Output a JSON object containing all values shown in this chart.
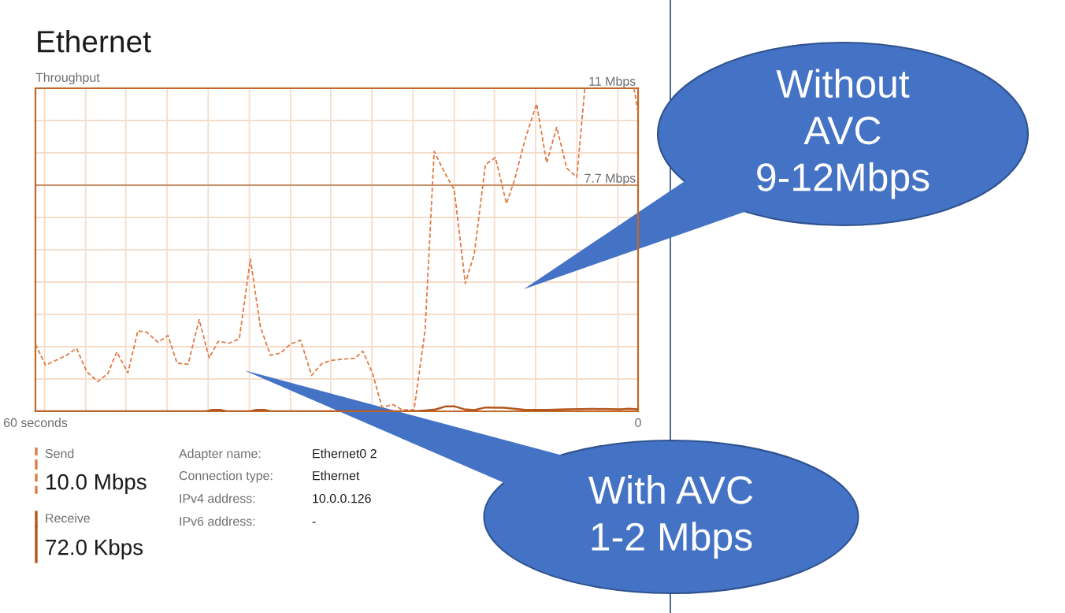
{
  "chart_data": {
    "type": "line",
    "title": "Ethernet",
    "ylabel": "Throughput",
    "xlim": [
      60,
      0
    ],
    "xticks": [
      {
        "value": 60,
        "label": "60 seconds"
      },
      {
        "value": 59.1,
        "label": null
      },
      {
        "value": 55.0,
        "label": null
      },
      {
        "value": 51.0,
        "label": null
      },
      {
        "value": 46.9,
        "label": null
      },
      {
        "value": 42.8,
        "label": null
      },
      {
        "value": 38.7,
        "label": null
      },
      {
        "value": 34.6,
        "label": null
      },
      {
        "value": 30.6,
        "label": null
      },
      {
        "value": 26.5,
        "label": null
      },
      {
        "value": 22.4,
        "label": null
      },
      {
        "value": 18.3,
        "label": null
      },
      {
        "value": 14.3,
        "label": null
      },
      {
        "value": 10.2,
        "label": null
      },
      {
        "value": 6.1,
        "label": null
      },
      {
        "value": 2.0,
        "label": null
      },
      {
        "value": 0,
        "label": "0"
      }
    ],
    "ylim": [
      0,
      11
    ],
    "yticks": [
      {
        "value": 1.1,
        "label": null
      },
      {
        "value": 2.2,
        "label": null
      },
      {
        "value": 3.3,
        "label": null
      },
      {
        "value": 4.4,
        "label": null
      },
      {
        "value": 5.5,
        "label": null
      },
      {
        "value": 6.6,
        "label": null
      },
      {
        "value": 7.7,
        "label": "7.7 Mbps"
      },
      {
        "value": 8.8,
        "label": null
      },
      {
        "value": 9.9,
        "label": null
      },
      {
        "value": 11,
        "label": "11 Mbps"
      }
    ],
    "grid": true,
    "legend": "bottom left",
    "ref_lines": [
      {
        "axis": "y",
        "value": 7.7,
        "color": "#c8926a"
      }
    ],
    "series": [
      {
        "name": "Send",
        "color": "#e07b45",
        "line_style": "dashed",
        "x": [
          60,
          59,
          57,
          55.9,
          54.9,
          53.8,
          52.8,
          51.9,
          50.8,
          49.8,
          48.9,
          47.8,
          46.8,
          45.9,
          44.8,
          43.7,
          42.7,
          41.8,
          40.7,
          39.7,
          38.6,
          37.6,
          36.6,
          35.6,
          34.6,
          33.6,
          32.5,
          31.5,
          30.6,
          29.3,
          28.2,
          27.4,
          26.4,
          25.5,
          24.4,
          23.5,
          22.3,
          21.2,
          20.3,
          19.3,
          18.3,
          17.2,
          16.3,
          15.2,
          14.2,
          13.1,
          12.3,
          11.2,
          10.1,
          9.1,
          8.1,
          7.1,
          6.1,
          5.3,
          4,
          3,
          2,
          1,
          0.4,
          0
        ],
        "values": [
          2.29,
          1.57,
          1.89,
          2.14,
          1.35,
          1.01,
          1.28,
          2.02,
          1.31,
          2.74,
          2.69,
          2.35,
          2.58,
          1.64,
          1.6,
          3.12,
          1.82,
          2.38,
          2.32,
          2.47,
          5.18,
          2.87,
          1.91,
          1.98,
          2.29,
          2.42,
          1.22,
          1.62,
          1.73,
          1.78,
          1.8,
          2.05,
          1.26,
          0.14,
          0.23,
          0.05,
          0.05,
          2.78,
          8.85,
          8.15,
          7.54,
          4.35,
          5.37,
          8.4,
          8.64,
          7.07,
          7.88,
          9.31,
          10.47,
          8.46,
          9.67,
          8.28,
          7.97,
          11.0,
          null,
          null,
          null,
          null,
          11.0,
          10.16
        ]
      },
      {
        "name": "Receive",
        "color": "#b4561c",
        "line_style": "solid",
        "x": [
          60,
          43.0,
          42.4,
          41.6,
          41.0,
          38.6,
          38.0,
          37.2,
          36.6,
          22.3,
          21.2,
          20.2,
          19.1,
          18.3,
          17.3,
          16.3,
          15.2,
          13.3,
          11.2,
          9.1,
          7.1,
          4.5,
          1.8,
          0.9,
          0
        ],
        "values": [
          0,
          0,
          0.05,
          0.05,
          0,
          0,
          0.05,
          0.05,
          0,
          0,
          0.03,
          0.06,
          0.17,
          0.17,
          0.07,
          0.04,
          0.13,
          0.12,
          0.05,
          0.05,
          0.07,
          0.08,
          0.07,
          0.09,
          0.07
        ]
      }
    ],
    "annotations": [
      "10.0 Mbps",
      "72.0 Kbps",
      "Adapter name:",
      "Ethernet0 2",
      "Connection type:",
      "Ethernet",
      "IPv4 address:",
      "10.0.0.126",
      "IPv6 address:",
      "-",
      "Without\nAVC\n9-12Mbps",
      "With AVC\n1-2 Mbps"
    ]
  }
}
